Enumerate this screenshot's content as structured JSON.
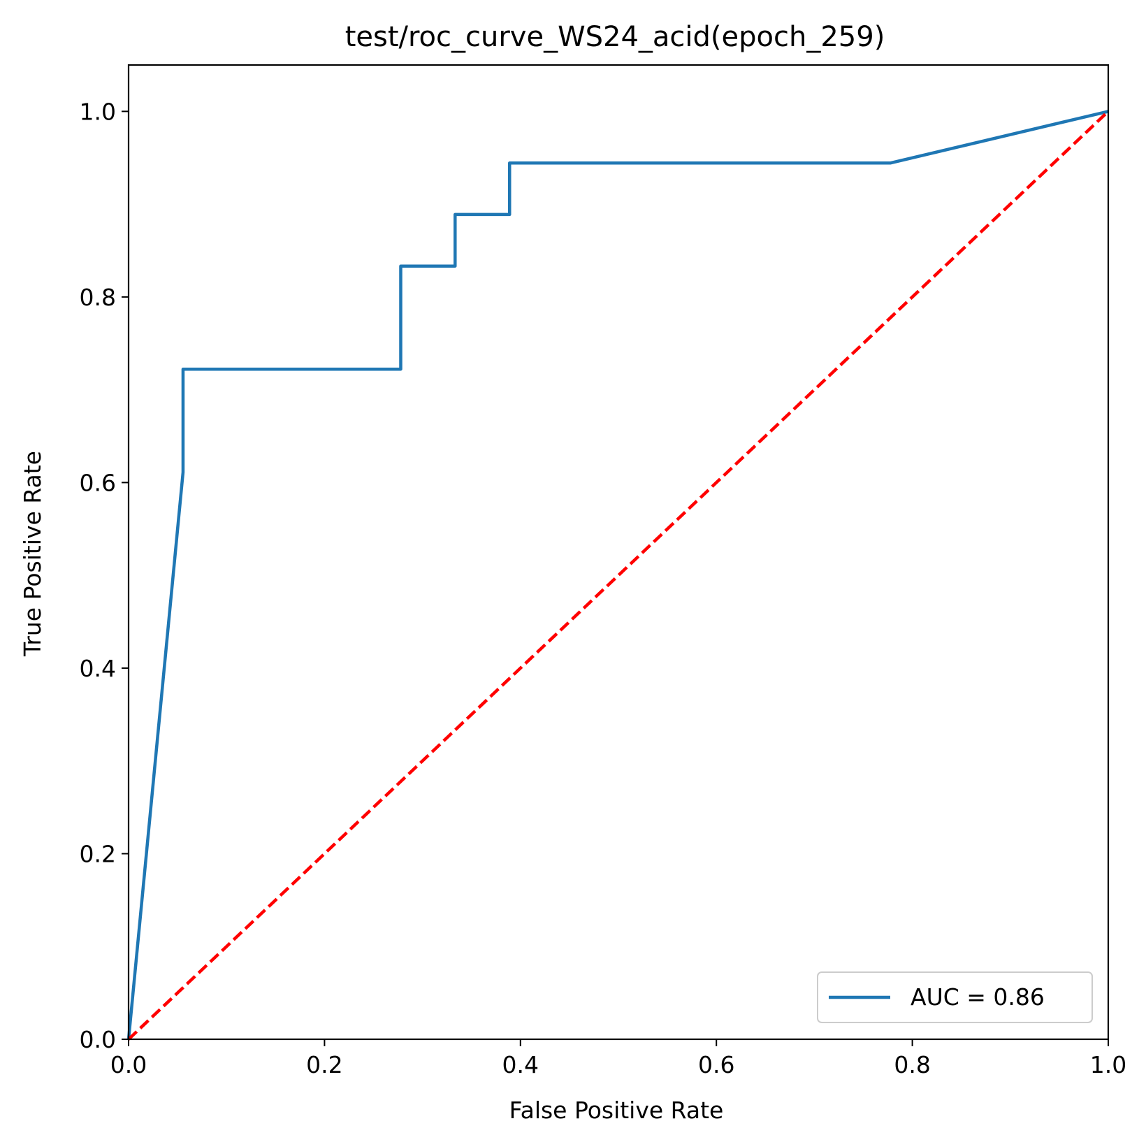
{
  "chart_data": {
    "type": "line",
    "title": "test/roc_curve_WS24_acid(epoch_259)",
    "xlabel": "False Positive Rate",
    "ylabel": "True Positive Rate",
    "xlim": [
      0.0,
      1.0
    ],
    "ylim": [
      0.0,
      1.05
    ],
    "xticks": [
      0.0,
      0.2,
      0.4,
      0.6,
      0.8,
      1.0
    ],
    "xtick_labels": [
      "0.0",
      "0.2",
      "0.4",
      "0.6",
      "0.8",
      "1.0"
    ],
    "yticks": [
      0.0,
      0.2,
      0.4,
      0.6,
      0.8,
      1.0
    ],
    "ytick_labels": [
      "0.0",
      "0.2",
      "0.4",
      "0.6",
      "0.8",
      "1.0"
    ],
    "grid": false,
    "legend_position": "lower-right",
    "series": [
      {
        "name": "AUC = 0.86",
        "color": "#1f77b4",
        "style": "solid",
        "x": [
          0.0,
          0.0556,
          0.0556,
          0.2778,
          0.2778,
          0.3333,
          0.3333,
          0.3889,
          0.3889,
          0.7778,
          1.0
        ],
        "y": [
          0.0,
          0.6111,
          0.7222,
          0.7222,
          0.8333,
          0.8333,
          0.8889,
          0.8889,
          0.9444,
          0.9444,
          1.0
        ]
      },
      {
        "color": "#ff0000",
        "style": "dashed",
        "x": [
          0.0,
          1.0
        ],
        "y": [
          0.0,
          1.0
        ]
      }
    ]
  }
}
